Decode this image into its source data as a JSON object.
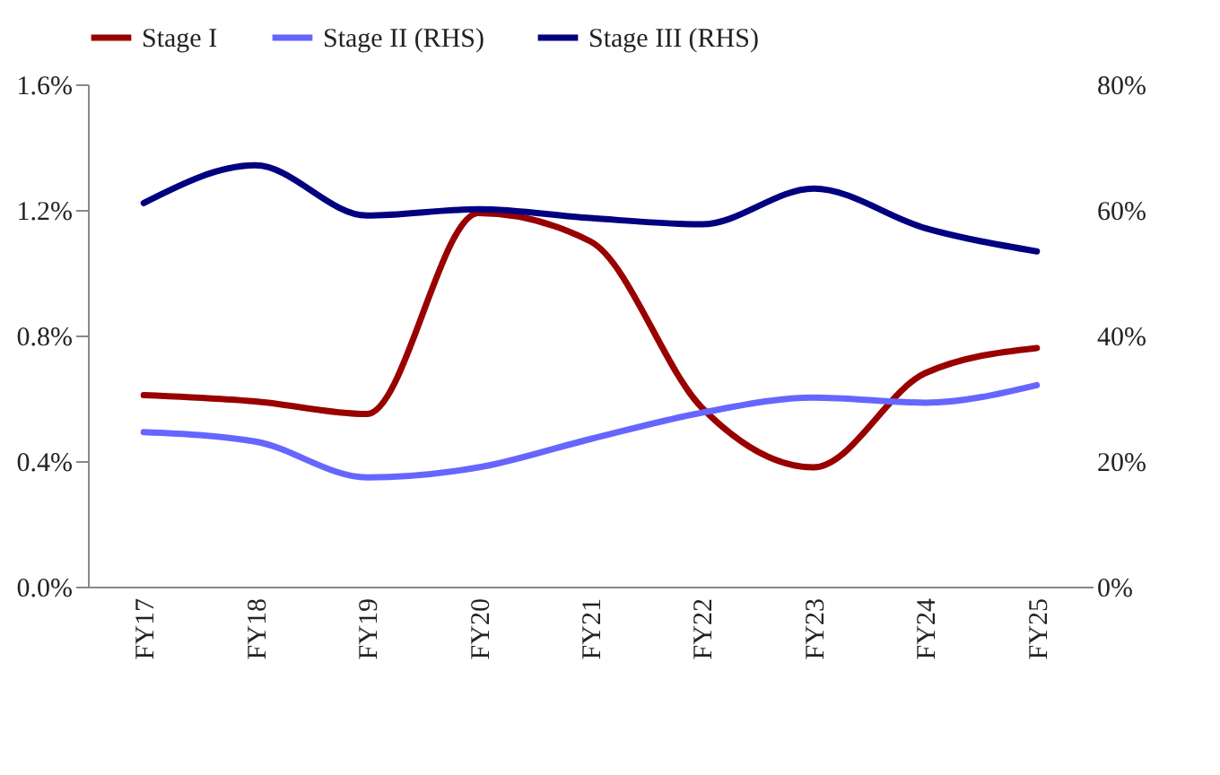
{
  "chart_data": {
    "type": "line",
    "categories": [
      "FY17",
      "FY18",
      "FY19",
      "FY20",
      "FY21",
      "FY22",
      "FY23",
      "FY24",
      "FY25"
    ],
    "series": [
      {
        "name": "Stage I",
        "color": "#990000",
        "values": [
          0.61,
          0.59,
          0.55,
          1.19,
          1.1,
          0.57,
          0.38,
          0.68,
          0.76
        ]
      },
      {
        "name": "Stage II (RHS)",
        "color": "#6666ff",
        "axis": "y2",
        "values": [
          24.6,
          23.1,
          17.4,
          19.0,
          23.5,
          27.7,
          30.1,
          29.3,
          32.1
        ]
      },
      {
        "name": "Stage III (RHS)",
        "color": "#000080",
        "axis": "y2",
        "values": [
          61.1,
          67.1,
          59.1,
          60.1,
          58.7,
          57.7,
          63.4,
          57.1,
          53.4
        ]
      }
    ],
    "ylim": [
      0,
      1.6
    ],
    "yticks": [
      {
        "value": 0,
        "label": "0.0%"
      },
      {
        "value": 0.4,
        "label": "0.4%"
      },
      {
        "value": 0.8,
        "label": "0.8%"
      },
      {
        "value": 1.2,
        "label": "1.2%"
      },
      {
        "value": 1.6,
        "label": "1.6%"
      }
    ],
    "y2lim": [
      0,
      80
    ],
    "y2ticks": [
      {
        "value": 0,
        "label": "0%"
      },
      {
        "value": 20,
        "label": "20%"
      },
      {
        "value": 40,
        "label": "40%"
      },
      {
        "value": 60,
        "label": "60%"
      },
      {
        "value": 80,
        "label": "80%"
      }
    ],
    "legend": "top",
    "grid": false,
    "marker": "none",
    "line_style": "solid"
  }
}
